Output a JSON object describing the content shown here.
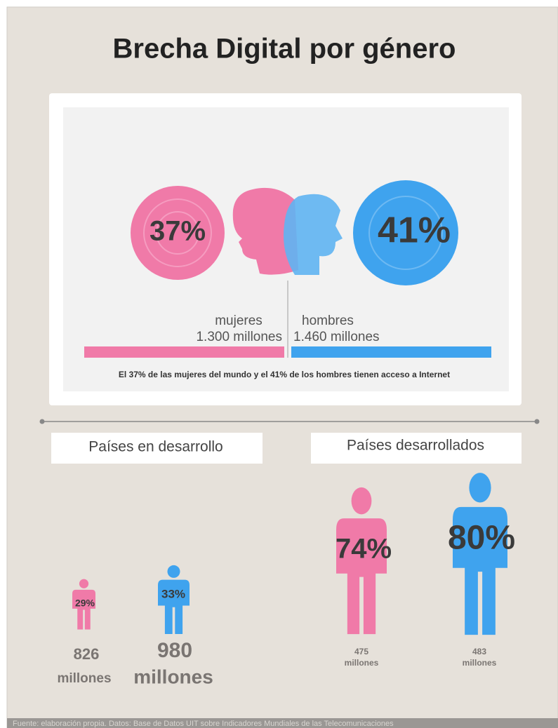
{
  "header": {
    "title": "Brecha Digital por género"
  },
  "global": {
    "women": {
      "percent": "37%",
      "label": "mujeres",
      "amount": "1.300 millones"
    },
    "men": {
      "percent": "41%",
      "label": "hombres",
      "amount": "1.460 millones"
    },
    "caption": "El 37% de las mujeres del mundo y el 41% de los hombres tienen acceso a Internet"
  },
  "groups": [
    {
      "title": "Países en desarrollo",
      "people": [
        {
          "percent": "29%",
          "amount": "826",
          "unit": "millones"
        },
        {
          "percent": "33%",
          "amount": "980",
          "unit": "millones"
        }
      ]
    },
    {
      "title": "Países desarrollados",
      "people": [
        {
          "percent": "74%",
          "amount": "475",
          "unit": "millones"
        },
        {
          "percent": "80%",
          "amount": "483",
          "unit": "millones"
        }
      ]
    }
  ],
  "footer": {
    "source": "Fuente: elaboración propia. Datos: Base de Datos UIT sobre  Indicadores Mundiales de las Telecomunicaciones"
  }
}
